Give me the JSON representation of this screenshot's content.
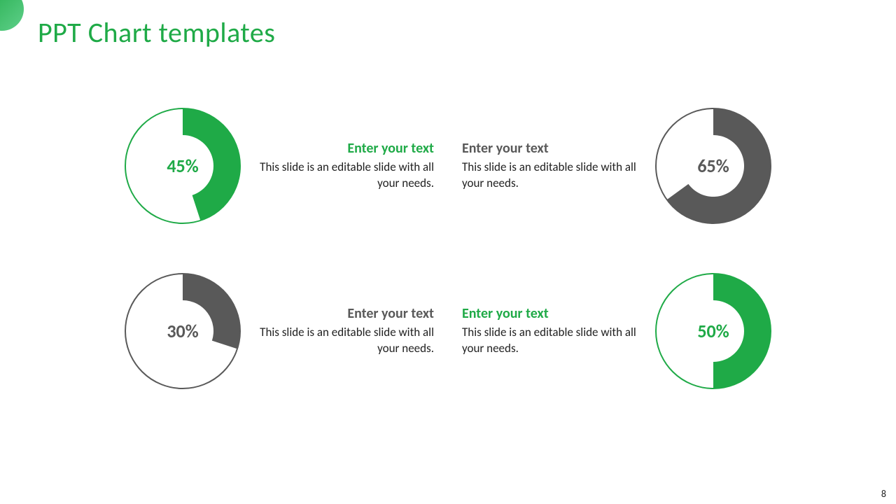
{
  "slide": {
    "title": "PPT Chart templates",
    "title_color": "#1faa47",
    "page_number": "8",
    "background": "#ffffff",
    "corner_gradient_from": "#1faa47",
    "corner_gradient_to": "#5fd08a"
  },
  "colors": {
    "green": "#1faa47",
    "gray": "#595959",
    "text": "#222222",
    "white": "#ffffff"
  },
  "charts": [
    {
      "id": "chart-1",
      "side": "left",
      "percent": 45,
      "percent_label": "45%",
      "color": "#1faa47",
      "heading": "Enter your text",
      "heading_color": "#1faa47",
      "body": "This slide is an editable slide with all your needs."
    },
    {
      "id": "chart-2",
      "side": "right",
      "percent": 65,
      "percent_label": "65%",
      "color": "#595959",
      "heading": "Enter your text",
      "heading_color": "#595959",
      "body": "This slide is an editable slide with all your needs."
    },
    {
      "id": "chart-3",
      "side": "left",
      "percent": 30,
      "percent_label": "30%",
      "color": "#595959",
      "heading": "Enter your text",
      "heading_color": "#595959",
      "body": "This slide is an editable slide with all your needs."
    },
    {
      "id": "chart-4",
      "side": "right",
      "percent": 50,
      "percent_label": "50%",
      "color": "#1faa47",
      "heading": "Enter your text",
      "heading_color": "#1faa47",
      "body": "This slide is an editable slide with all your needs."
    }
  ],
  "donut_style": {
    "outer_radius": 82,
    "inner_radius": 44,
    "ring_stroke_width": 2,
    "pct_fontsize": 26,
    "heading_fontsize": 20,
    "body_fontsize": 17
  }
}
